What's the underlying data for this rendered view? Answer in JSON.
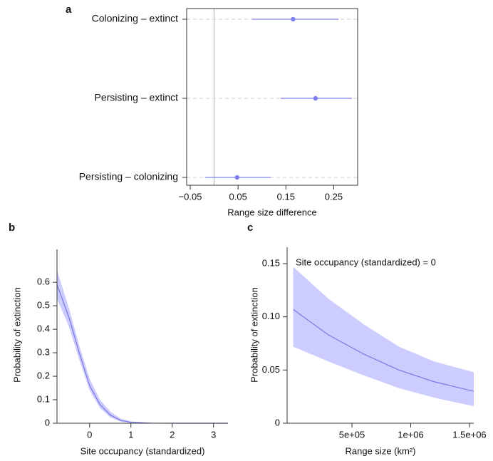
{
  "chart_data": [
    {
      "type": "interval",
      "panel_label": "a",
      "xlabel": "Range size difference",
      "categories": [
        "Colonizing – extinct",
        "Persisting – extinct",
        "Persisting – colonizing"
      ],
      "series": [
        {
          "color": "#7f7fee",
          "values": [
            0.165,
            0.212,
            0.048
          ],
          "lower": [
            0.079,
            0.139,
            -0.019
          ],
          "upper": [
            0.26,
            0.288,
            0.118
          ]
        }
      ],
      "xlim": [
        -0.0575,
        0.3
      ],
      "xticks": [
        {
          "value": -0.05,
          "label": "−0.05"
        },
        0.05,
        0.15,
        0.25
      ],
      "reference_line": 0,
      "grid": true
    },
    {
      "type": "line_band",
      "panel_label": "b",
      "xlabel": "Site occupancy (standardized)",
      "ylabel": "Probability of extinction",
      "x": [
        -0.79,
        -0.5,
        -0.25,
        0,
        0.25,
        0.5,
        0.75,
        1,
        1.5,
        2,
        3.35
      ],
      "series": [
        {
          "color": "#7a78e0",
          "band_color": "#ccccff",
          "values": [
            0.59,
            0.45,
            0.3,
            0.16,
            0.08,
            0.035,
            0.012,
            0.004,
            0.0005,
            0,
            0
          ],
          "lower": [
            0.53,
            0.41,
            0.27,
            0.14,
            0.065,
            0.025,
            0.007,
            0.002,
            0,
            0,
            0
          ],
          "upper": [
            0.65,
            0.49,
            0.33,
            0.19,
            0.1,
            0.05,
            0.02,
            0.008,
            0.001,
            0,
            0
          ]
        }
      ],
      "xlim": [
        -0.79,
        3.35
      ],
      "xticks": [
        0,
        1,
        2,
        3
      ],
      "ylim": [
        0,
        0.74
      ],
      "yticks": [
        0,
        0.1,
        0.2,
        0.3,
        0.4,
        0.5,
        0.6
      ]
    },
    {
      "type": "line_band",
      "panel_label": "c",
      "xlabel": "Range size (km²)",
      "ylabel": "Probability of extinction",
      "annotation": "Site occupancy (standardized) = 0",
      "x": [
        0,
        300000,
        600000,
        900000,
        1200000,
        1536500
      ],
      "series": [
        {
          "color": "#7a78e0",
          "band_color": "#ccccff",
          "values": [
            0.107,
            0.083,
            0.065,
            0.05,
            0.039,
            0.03
          ],
          "lower": [
            0.072,
            0.058,
            0.045,
            0.033,
            0.024,
            0.016
          ],
          "upper": [
            0.147,
            0.117,
            0.093,
            0.072,
            0.058,
            0.048
          ]
        }
      ],
      "xlim": [
        -51500,
        1536500
      ],
      "xticks": [
        {
          "value": 500000,
          "label": "5e+05"
        },
        {
          "value": 1000000,
          "label": "1e+06"
        },
        {
          "value": 1500000,
          "label": "1.5e+06"
        }
      ],
      "ylim": [
        0,
        0.1654
      ],
      "yticks": [
        0,
        0.05,
        {
          "value": 0.1,
          "label": "0.10"
        },
        0.15
      ]
    }
  ]
}
